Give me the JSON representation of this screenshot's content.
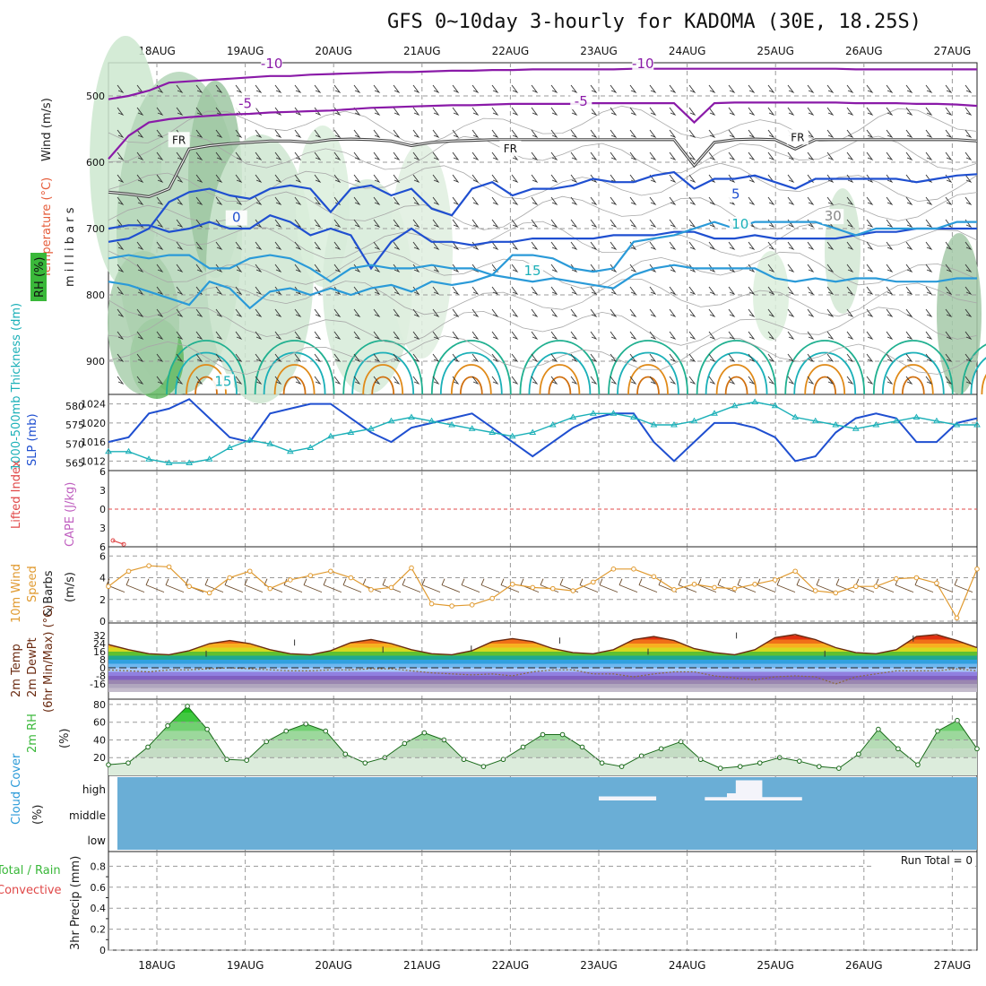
{
  "title": "GFS 0~10day 3-hourly for KADOMA (30E, 18.25S)",
  "date_labels": [
    "18AUG",
    "19AUG",
    "20AUG",
    "21AUG",
    "22AUG",
    "23AUG",
    "24AUG",
    "25AUG",
    "26AUG",
    "27AUG"
  ],
  "colors": {
    "purple": "#8a1aa8",
    "black": "#111111",
    "blue": "#1f4fd0",
    "lblue": "#2a9ad8",
    "teal": "#1bb0b8",
    "green": "#20b090",
    "orange": "#e08a18",
    "magenta": "#c0108a",
    "cloud": "#6aaed6",
    "rhgreen": "#3ab83a",
    "wind10": "#e09a30",
    "barb": "#6b4a2a"
  },
  "chart_data": [
    {
      "type": "line",
      "panel": "pressure-levels",
      "ylabel_parts": [
        "Wind (m/s)",
        "Temperature (°C)",
        "RH (%)"
      ],
      "yaxis_title": "millibars",
      "y_ticks": [
        500,
        600,
        700,
        800,
        900
      ],
      "contour_labels": [
        {
          "text": "-10",
          "day": 1.3,
          "p": 458
        },
        {
          "text": "-10",
          "day": 5.5,
          "p": 458
        },
        {
          "text": "-5",
          "day": 1.0,
          "p": 518
        },
        {
          "text": "-5",
          "day": 4.8,
          "p": 515
        },
        {
          "text": "FR",
          "day": 0.25,
          "p": 572
        },
        {
          "text": "FR",
          "day": 4.0,
          "p": 585
        },
        {
          "text": "FR",
          "day": 7.25,
          "p": 568
        },
        {
          "text": "5",
          "day": 6.55,
          "p": 655
        },
        {
          "text": "0",
          "day": 0.9,
          "p": 690
        },
        {
          "text": "10",
          "day": 6.6,
          "p": 700
        },
        {
          "text": "15",
          "day": 4.25,
          "p": 770
        },
        {
          "text": "15",
          "day": 0.75,
          "p": 937
        },
        {
          "text": "30",
          "day": 7.65,
          "p": 688
        }
      ],
      "series": [
        {
          "name": "-10",
          "color": "purple",
          "values": [
            505,
            500,
            492,
            480,
            478,
            476,
            474,
            472,
            470,
            470,
            468,
            467,
            466,
            465,
            464,
            464,
            463,
            462,
            462,
            461,
            461,
            460,
            460,
            460,
            460,
            460,
            459,
            459,
            459,
            459,
            459,
            459,
            459,
            459,
            459,
            459,
            459,
            460,
            460,
            460,
            460,
            460,
            460,
            460
          ]
        },
        {
          "name": "-5",
          "color": "purple",
          "values": [
            595,
            560,
            540,
            535,
            532,
            530,
            528,
            527,
            525,
            524,
            523,
            522,
            520,
            518,
            517,
            516,
            515,
            514,
            514,
            513,
            512,
            512,
            512,
            512,
            511,
            511,
            511,
            511,
            511,
            540,
            511,
            510,
            510,
            510,
            510,
            510,
            510,
            511,
            511,
            511,
            512,
            512,
            513,
            515
          ]
        },
        {
          "name": "FR",
          "color": "black",
          "values": [
            645,
            648,
            652,
            640,
            580,
            575,
            572,
            570,
            568,
            568,
            570,
            566,
            565,
            566,
            568,
            575,
            570,
            568,
            567,
            566,
            566,
            566,
            566,
            566,
            566,
            566,
            566,
            566,
            566,
            605,
            570,
            566,
            565,
            566,
            580,
            566,
            566,
            566,
            566,
            566,
            566,
            566,
            566,
            568
          ]
        },
        {
          "name": "5",
          "color": "blue",
          "values": [
            720,
            715,
            700,
            660,
            645,
            640,
            650,
            655,
            640,
            635,
            640,
            675,
            640,
            635,
            650,
            640,
            670,
            680,
            640,
            630,
            650,
            640,
            640,
            635,
            625,
            630,
            630,
            620,
            615,
            640,
            625,
            625,
            620,
            630,
            640,
            625,
            625,
            625,
            625,
            625,
            630,
            625,
            620,
            618
          ]
        },
        {
          "name": "0",
          "color": "blue",
          "values": [
            700,
            695,
            695,
            705,
            700,
            690,
            700,
            700,
            680,
            690,
            710,
            700,
            710,
            760,
            720,
            700,
            720,
            720,
            725,
            720,
            720,
            715,
            715,
            715,
            715,
            710,
            710,
            710,
            705,
            705,
            715,
            715,
            710,
            715,
            715,
            715,
            715,
            710,
            705,
            705,
            700,
            700,
            700,
            700
          ]
        },
        {
          "name": "10",
          "color": "lblue",
          "values": [
            745,
            740,
            745,
            740,
            740,
            760,
            760,
            745,
            740,
            745,
            760,
            780,
            760,
            755,
            760,
            760,
            755,
            760,
            760,
            770,
            740,
            740,
            745,
            760,
            765,
            760,
            720,
            715,
            710,
            700,
            690,
            700,
            690,
            690,
            690,
            690,
            700,
            710,
            700,
            700,
            700,
            700,
            690,
            690
          ]
        },
        {
          "name": "15",
          "color": "lblue",
          "values": [
            780,
            785,
            795,
            805,
            815,
            780,
            790,
            820,
            795,
            790,
            800,
            790,
            800,
            790,
            785,
            795,
            780,
            785,
            780,
            770,
            775,
            780,
            775,
            780,
            785,
            790,
            770,
            760,
            755,
            760,
            760,
            760,
            760,
            775,
            780,
            775,
            780,
            775,
            775,
            780,
            780,
            780,
            775,
            775
          ]
        }
      ]
    },
    {
      "type": "line",
      "panel": "thickness-slp",
      "ylabel_parts": [
        "1000-500mb Thickness (dm)",
        "SLP (mb)"
      ],
      "left_ticks": [
        565,
        570,
        575,
        580
      ],
      "right_ticks": [
        1012,
        1016,
        1020,
        1024
      ],
      "series": [
        {
          "name": "SLP",
          "color": "blue",
          "axis": "right",
          "values": [
            1016,
            1017,
            1022,
            1023,
            1025,
            1021,
            1017,
            1016,
            1022,
            1023,
            1024,
            1024,
            1021,
            1018,
            1016,
            1019,
            1020,
            1021,
            1022,
            1019,
            1016,
            1013,
            1016,
            1019,
            1021,
            1022,
            1022,
            1016,
            1012,
            1016,
            1020,
            1020,
            1019,
            1017,
            1012,
            1013,
            1018,
            1021,
            1022,
            1021,
            1016,
            1016,
            1020,
            1021
          ]
        },
        {
          "name": "Thickness",
          "color": "teal",
          "axis": "left",
          "values": [
            568,
            568,
            566,
            565,
            565,
            566,
            569,
            571,
            570,
            568,
            569,
            572,
            573,
            574,
            576,
            577,
            576,
            575,
            574,
            573,
            572,
            573,
            575,
            577,
            578,
            578,
            577,
            575,
            575,
            576,
            578,
            580,
            581,
            580,
            577,
            576,
            575,
            574,
            575,
            576,
            577,
            576,
            575,
            575
          ]
        }
      ]
    },
    {
      "type": "line",
      "panel": "lifted-index-cape",
      "ylabel_parts": [
        "Lifted Index",
        "CAPE (J/kg)"
      ],
      "y_ticks": [
        "-6",
        "-3",
        "0",
        "3",
        "6"
      ],
      "series": [
        {
          "name": "Lifted Index",
          "color": "#e04848",
          "values": [
            5.0,
            5.6
          ]
        }
      ]
    },
    {
      "type": "line",
      "panel": "10m-wind",
      "ylabel_parts": [
        "10m Wind",
        "Speed",
        "& Barbs",
        "(m/s)"
      ],
      "y_ticks": [
        0,
        2,
        4,
        6
      ],
      "series": [
        {
          "name": "Speed",
          "color": "wind10",
          "values": [
            3.2,
            4.6,
            5.1,
            5.0,
            3.2,
            2.6,
            4.0,
            4.6,
            3.0,
            3.8,
            4.2,
            4.6,
            4.0,
            2.9,
            3.1,
            4.9,
            1.6,
            1.4,
            1.5,
            2.1,
            3.4,
            3.1,
            3.0,
            2.8,
            3.6,
            4.8,
            4.8,
            4.1,
            2.9,
            3.4,
            3.1,
            3.0,
            3.4,
            3.8,
            4.6,
            2.8,
            2.6,
            3.2,
            3.2,
            3.9,
            4.0,
            3.5,
            0.3,
            4.8
          ]
        }
      ]
    },
    {
      "type": "area",
      "panel": "2m-temp",
      "ylabel_parts": [
        "2m Temp",
        "2m DewPt",
        "(6hr Min/Max) (°C)"
      ],
      "y_ticks": [
        -16,
        -8,
        0,
        8,
        16,
        24,
        32
      ],
      "series": [
        {
          "name": "Temp",
          "values": [
            23,
            18,
            14,
            13,
            17,
            24,
            27,
            24,
            18,
            14,
            13,
            17,
            25,
            28,
            24,
            18,
            14,
            13,
            17,
            26,
            29,
            26,
            19,
            15,
            14,
            18,
            28,
            31,
            27,
            19,
            15,
            13,
            18,
            30,
            33,
            28,
            20,
            15,
            14,
            18,
            31,
            33,
            27,
            20
          ]
        },
        {
          "name": "DewPt",
          "values": [
            -2,
            -3,
            -4,
            -2,
            -2,
            -1,
            0,
            -1,
            -2,
            -3,
            -3,
            -2,
            -2,
            -1,
            -1,
            -3,
            -5,
            -6,
            -7,
            -6,
            -8,
            -4,
            -2,
            -2,
            -6,
            -6,
            -9,
            -6,
            -4,
            -4,
            -8,
            -10,
            -12,
            -9,
            -8,
            -9,
            -16,
            -9,
            -6,
            -3,
            -3,
            -3,
            -1,
            -3
          ]
        }
      ]
    },
    {
      "type": "area",
      "panel": "2m-rh",
      "ylabel_parts": [
        "2m RH",
        "(%)"
      ],
      "y_ticks": [
        20,
        40,
        60,
        80
      ],
      "series": [
        {
          "name": "RH",
          "values": [
            12,
            14,
            32,
            56,
            78,
            52,
            18,
            17,
            38,
            50,
            58,
            50,
            24,
            14,
            20,
            36,
            48,
            40,
            18,
            10,
            18,
            32,
            46,
            46,
            32,
            14,
            10,
            22,
            30,
            38,
            18,
            8,
            10,
            14,
            20,
            16,
            10,
            8,
            24,
            52,
            30,
            12,
            50,
            62,
            30
          ]
        }
      ]
    },
    {
      "type": "bar",
      "panel": "cloud-cover",
      "ylabel_parts": [
        "Cloud Cover",
        "(%)"
      ],
      "y_ticks": [
        "low",
        "middle",
        "high"
      ],
      "series": [
        {
          "name": "high",
          "values": [
            0,
            0,
            0,
            0,
            0,
            0,
            0,
            0,
            0,
            0,
            0,
            0,
            0,
            0,
            0,
            0,
            0,
            0,
            0,
            0,
            0,
            0,
            0,
            0,
            0,
            0,
            0,
            0,
            0,
            0,
            0,
            0,
            0,
            0,
            0,
            0,
            0,
            0,
            0,
            0,
            0,
            0,
            0,
            0,
            0,
            0,
            0,
            0,
            0,
            0,
            0,
            0,
            0,
            0,
            0,
            0,
            0,
            0,
            0,
            0,
            0,
            0,
            0,
            0,
            0,
            0,
            0,
            0,
            0,
            0,
            0,
            0,
            0,
            0,
            0,
            0,
            0,
            0,
            0,
            0
          ]
        }
      ],
      "white_blocks": [
        {
          "day_start": 5.0,
          "day_end": 5.65,
          "level": 0.18
        },
        {
          "day_start": 6.2,
          "day_end": 7.3,
          "level": 0.15
        },
        {
          "day_start": 6.45,
          "day_end": 6.75,
          "level": 0.32
        },
        {
          "day_start": 6.55,
          "day_end": 6.85,
          "level": 0.9
        }
      ]
    },
    {
      "type": "bar",
      "panel": "precip",
      "ylabel_parts": [
        "Total / Rain",
        "Convective",
        "3hr Precip (mm)"
      ],
      "y_ticks": [
        "0",
        "0.2",
        "0.4",
        "0.6",
        "0.8"
      ],
      "annotation": "Run Total = 0",
      "values": []
    }
  ]
}
